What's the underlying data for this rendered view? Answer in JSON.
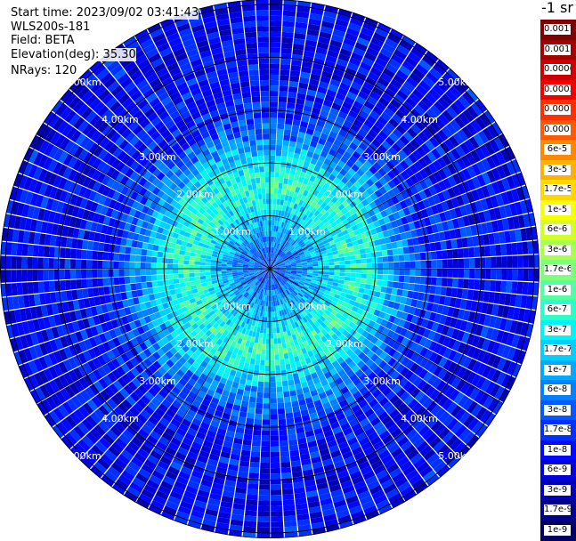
{
  "info": {
    "start_time": "Start time: 2023/09/02 03:41:43",
    "device": "WLS200s-181",
    "field": "Field: BETA",
    "elevation": "Elevation(deg): 35.30",
    "nrays": "NRays: 120"
  },
  "colorbar": {
    "unit_label": "-1 sr",
    "labels": [
      "0.0017",
      "0.001",
      "0.0006",
      "0.0003",
      "0.00017",
      "0.0001",
      "6e-5",
      "3e-5",
      "1.7e-5",
      "1e-5",
      "6e-6",
      "3e-6",
      "1.7e-6",
      "1e-6",
      "6e-7",
      "3e-7",
      "1.7e-7",
      "1e-7",
      "6e-8",
      "3e-8",
      "1.7e-8",
      "1e-8",
      "6e-9",
      "3e-9",
      "1.7e-9",
      "1e-9"
    ],
    "colors": [
      "#7f0000",
      "#a50000",
      "#cc0000",
      "#f20000",
      "#ff3000",
      "#ff5a00",
      "#ff8800",
      "#ffb000",
      "#ffd800",
      "#f8ff00",
      "#d2ff25",
      "#a8ff4f",
      "#7eff79",
      "#54ffa2",
      "#2affcc",
      "#00f4f6",
      "#00cfff",
      "#00a8ff",
      "#0080ff",
      "#0058ff",
      "#0030ff",
      "#0008ff",
      "#0000dd",
      "#0000b4",
      "#00008a",
      "#000060"
    ]
  },
  "chart_data": {
    "type": "heatmap",
    "projection": "polar (PPI)",
    "field": "BETA",
    "elevation_deg": 35.3,
    "n_rays": 120,
    "range_rings_km": [
      1.0,
      2.0,
      3.0,
      4.0,
      5.0
    ],
    "ring_labels": [
      "1.00km",
      "2.00km",
      "3.00km",
      "4.00km",
      "5.00km"
    ],
    "ring_label_sets": [
      {
        "ring_index": 0,
        "labels": [
          "1.00km",
          "1.00km",
          "1.00km",
          "1.00km"
        ]
      },
      {
        "ring_index": 1,
        "labels": [
          "2.00km",
          "2.00km",
          "2.00km",
          "2.00km"
        ]
      },
      {
        "ring_index": 2,
        "labels": [
          "3.00km",
          "3.00km",
          "3.00km",
          "3.00km"
        ]
      },
      {
        "ring_index": 3,
        "labels": [
          "4.00km",
          "4.00km",
          "4.00km",
          "4.00km"
        ]
      },
      {
        "ring_index": 4,
        "labels": [
          "5.00km",
          "5.00km",
          "5.00km",
          "5.00km"
        ]
      }
    ],
    "max_range_km": 5.1,
    "spoke_interval_deg": 30,
    "radial_profile": [
      {
        "range_km": 0.0,
        "beta": 3e-08
      },
      {
        "range_km": 0.5,
        "beta": 6e-08
      },
      {
        "range_km": 1.0,
        "beta": 1.7e-07
      },
      {
        "range_km": 1.5,
        "beta": 6e-07
      },
      {
        "range_km": 2.0,
        "beta": 3e-07
      },
      {
        "range_km": 2.5,
        "beta": 6e-08
      },
      {
        "range_km": 3.0,
        "beta": 1.7e-08
      },
      {
        "range_km": 4.0,
        "beta": 1e-08
      },
      {
        "range_km": 5.0,
        "beta": 1e-08
      }
    ],
    "scale": "log",
    "vmin": 1e-09,
    "vmax": 0.0017
  }
}
